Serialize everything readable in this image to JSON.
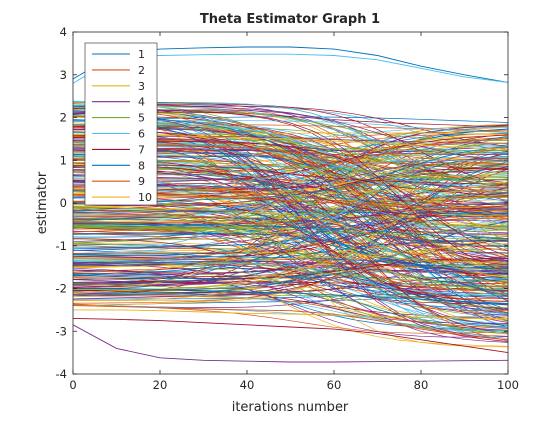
{
  "chart_data": {
    "type": "line",
    "title": "Theta Estimator Graph 1",
    "xlabel": "iterations number",
    "ylabel": "estimator",
    "xlim": [
      0,
      100
    ],
    "ylim": [
      -4,
      4
    ],
    "xticks": [
      0,
      20,
      40,
      60,
      80,
      100
    ],
    "yticks": [
      -4,
      -3,
      -2,
      -1,
      0,
      1,
      2,
      3,
      4
    ],
    "x_tick_labels": [
      "0",
      "20",
      "40",
      "60",
      "80",
      "100"
    ],
    "y_tick_labels": [
      "-4",
      "-3",
      "-2",
      "-1",
      "0",
      "1",
      "2",
      "3",
      "4"
    ],
    "grid": false,
    "legend_position": "top-left",
    "legend_entries": [
      "1",
      "2",
      "3",
      "4",
      "5",
      "6",
      "7",
      "8",
      "9",
      "10"
    ],
    "series_colors": [
      "#0072bd",
      "#d95319",
      "#edb120",
      "#7e2f8e",
      "#77ac30",
      "#4dbeee",
      "#a2142f",
      "#0072bd",
      "#d95319",
      "#edb120"
    ],
    "series": [
      {
        "name": "1",
        "x": [
          0,
          10,
          20,
          30,
          40,
          50,
          60,
          70,
          80,
          90,
          100
        ],
        "values": [
          2.9,
          3.5,
          3.6,
          3.63,
          3.65,
          3.65,
          3.6,
          3.45,
          3.2,
          3.0,
          2.82
        ]
      },
      {
        "name": "2",
        "x": [
          0,
          10,
          20,
          30,
          40,
          50,
          60,
          70,
          80,
          90,
          100
        ],
        "values": [
          -2.4,
          -2.42,
          -2.45,
          -2.48,
          -2.5,
          -2.52,
          -2.6,
          -2.75,
          -2.95,
          -3.1,
          -3.2
        ]
      },
      {
        "name": "3",
        "x": [
          0,
          10,
          20,
          30,
          40,
          50,
          60,
          70,
          80,
          90,
          100
        ],
        "values": [
          -2.5,
          -2.5,
          -2.52,
          -2.55,
          -2.58,
          -2.6,
          -2.62,
          -2.65,
          -2.68,
          -2.7,
          -2.72
        ]
      },
      {
        "name": "4",
        "x": [
          0,
          10,
          20,
          30,
          40,
          50,
          60,
          70,
          80,
          90,
          100
        ],
        "values": [
          -2.85,
          -3.4,
          -3.62,
          -3.68,
          -3.7,
          -3.72,
          -3.72,
          -3.71,
          -3.7,
          -3.69,
          -3.68
        ]
      },
      {
        "name": "5",
        "x": [
          0,
          10,
          20,
          30,
          40,
          50,
          60,
          70,
          80,
          90,
          100
        ],
        "values": [
          1.1,
          1.05,
          1.0,
          0.95,
          0.9,
          0.85,
          0.8,
          0.7,
          0.6,
          0.5,
          0.4
        ]
      },
      {
        "name": "6",
        "x": [
          0,
          10,
          20,
          30,
          40,
          50,
          60,
          70,
          80,
          90,
          100
        ],
        "values": [
          2.8,
          3.4,
          3.45,
          3.47,
          3.48,
          3.48,
          3.45,
          3.35,
          3.15,
          2.95,
          2.82
        ]
      },
      {
        "name": "7",
        "x": [
          0,
          10,
          20,
          30,
          40,
          50,
          60,
          70,
          80,
          90,
          100
        ],
        "values": [
          -2.7,
          -2.72,
          -2.75,
          -2.8,
          -2.85,
          -2.9,
          -2.95,
          -3.05,
          -3.2,
          -3.35,
          -3.5
        ]
      },
      {
        "name": "8",
        "x": [
          0,
          10,
          20,
          30,
          40,
          50,
          60,
          70,
          80,
          90,
          100
        ],
        "values": [
          -2.0,
          -2.0,
          -2.02,
          -2.05,
          -2.08,
          -2.1,
          -2.15,
          -2.2,
          -2.25,
          -2.3,
          -2.35
        ]
      },
      {
        "name": "9",
        "x": [
          0,
          10,
          20,
          30,
          40,
          50,
          60,
          70,
          80,
          90,
          100
        ],
        "values": [
          0.2,
          0.2,
          0.18,
          0.15,
          0.1,
          0.05,
          0.0,
          -0.05,
          -0.1,
          -0.15,
          -0.2
        ]
      },
      {
        "name": "10",
        "x": [
          0,
          10,
          20,
          30,
          40,
          50,
          60,
          70,
          80,
          90,
          100
        ],
        "values": [
          1.6,
          1.6,
          1.58,
          1.55,
          1.52,
          1.5,
          1.45,
          1.4,
          1.35,
          1.3,
          1.25
        ]
      }
    ],
    "dense_band": {
      "line_count": 400,
      "color_cycle": [
        "#0072bd",
        "#d95319",
        "#edb120",
        "#7e2f8e",
        "#77ac30",
        "#4dbeee",
        "#a2142f"
      ],
      "start_range": [
        -2.4,
        2.4
      ],
      "end_range": [
        -3.4,
        1.9
      ]
    }
  }
}
